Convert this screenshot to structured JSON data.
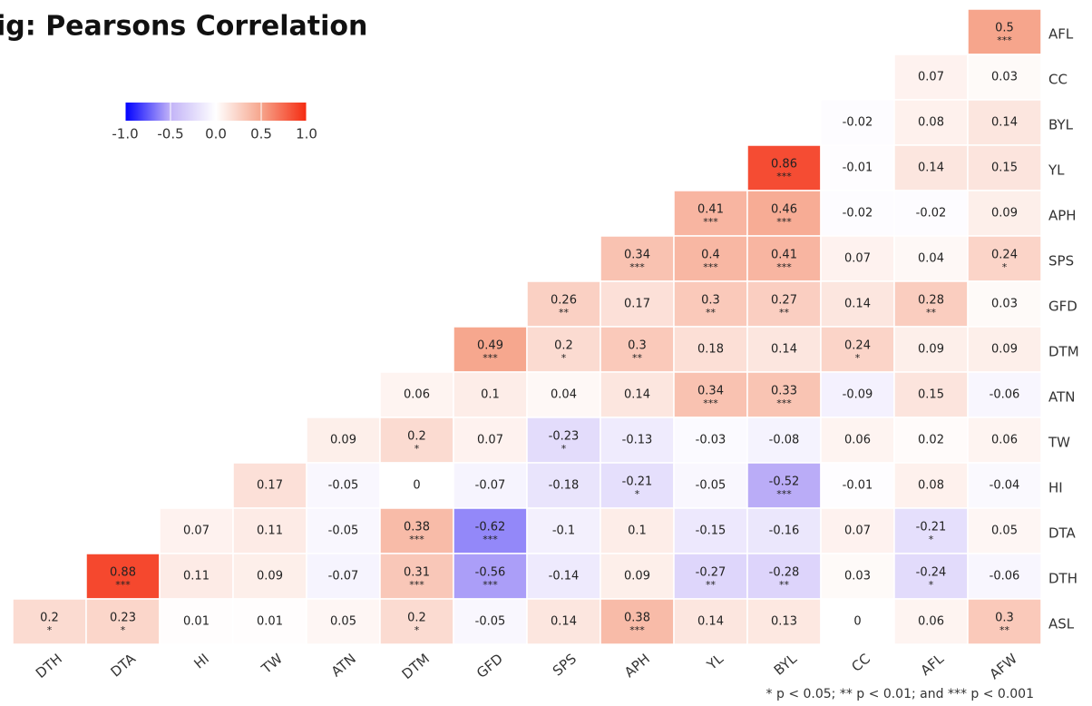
{
  "chart_data": {
    "type": "heatmap",
    "title": "ig: Pearsons Correlation",
    "x": [
      "DTH",
      "DTA",
      "HI",
      "TW",
      "ATN",
      "DTM",
      "GFD",
      "SPS",
      "APH",
      "YL",
      "BYL",
      "CC",
      "AFL",
      "AFW"
    ],
    "y": [
      "AFL",
      "CC",
      "BYL",
      "YL",
      "APH",
      "SPS",
      "GFD",
      "DTM",
      "ATN",
      "TW",
      "HI",
      "DTA",
      "DTH",
      "ASL"
    ],
    "values": [
      [
        null,
        null,
        null,
        null,
        null,
        null,
        null,
        null,
        null,
        null,
        null,
        null,
        null,
        0.5
      ],
      [
        null,
        null,
        null,
        null,
        null,
        null,
        null,
        null,
        null,
        null,
        null,
        null,
        0.07,
        0.03
      ],
      [
        null,
        null,
        null,
        null,
        null,
        null,
        null,
        null,
        null,
        null,
        null,
        -0.02,
        0.08,
        0.14
      ],
      [
        null,
        null,
        null,
        null,
        null,
        null,
        null,
        null,
        null,
        null,
        0.86,
        -0.01,
        0.14,
        0.15
      ],
      [
        null,
        null,
        null,
        null,
        null,
        null,
        null,
        null,
        null,
        0.41,
        0.46,
        -0.02,
        -0.02,
        0.09
      ],
      [
        null,
        null,
        null,
        null,
        null,
        null,
        null,
        null,
        0.34,
        0.4,
        0.41,
        0.07,
        0.04,
        0.24
      ],
      [
        null,
        null,
        null,
        null,
        null,
        null,
        null,
        0.26,
        0.17,
        0.3,
        0.27,
        0.14,
        0.28,
        0.03
      ],
      [
        null,
        null,
        null,
        null,
        null,
        null,
        0.49,
        0.2,
        0.3,
        0.18,
        0.14,
        0.24,
        0.09,
        0.09
      ],
      [
        null,
        null,
        null,
        null,
        null,
        0.06,
        0.1,
        0.04,
        0.14,
        0.34,
        0.33,
        -0.09,
        0.15,
        -0.06
      ],
      [
        null,
        null,
        null,
        null,
        0.09,
        0.2,
        0.07,
        -0.23,
        -0.13,
        -0.03,
        -0.08,
        0.06,
        0.02,
        0.06
      ],
      [
        null,
        null,
        null,
        0.17,
        -0.05,
        0,
        -0.07,
        -0.18,
        -0.21,
        -0.05,
        -0.52,
        -0.01,
        0.08,
        -0.04
      ],
      [
        null,
        null,
        0.07,
        0.11,
        -0.05,
        0.38,
        -0.62,
        -0.1,
        0.1,
        -0.15,
        -0.16,
        0.07,
        -0.21,
        0.05
      ],
      [
        null,
        0.88,
        0.11,
        0.09,
        -0.07,
        0.31,
        -0.56,
        -0.14,
        0.09,
        -0.27,
        -0.28,
        0.03,
        -0.24,
        -0.06
      ],
      [
        0.2,
        0.23,
        0.01,
        0.01,
        0.05,
        0.2,
        -0.05,
        0.14,
        0.38,
        0.14,
        0.13,
        0,
        0.06,
        0.3
      ]
    ],
    "stars": [
      [
        null,
        null,
        null,
        null,
        null,
        null,
        null,
        null,
        null,
        null,
        null,
        null,
        null,
        "***"
      ],
      [
        null,
        null,
        null,
        null,
        null,
        null,
        null,
        null,
        null,
        null,
        null,
        null,
        null,
        null
      ],
      [
        null,
        null,
        null,
        null,
        null,
        null,
        null,
        null,
        null,
        null,
        null,
        null,
        null,
        null
      ],
      [
        null,
        null,
        null,
        null,
        null,
        null,
        null,
        null,
        null,
        null,
        "***",
        null,
        null,
        null
      ],
      [
        null,
        null,
        null,
        null,
        null,
        null,
        null,
        null,
        null,
        "***",
        "***",
        null,
        null,
        null
      ],
      [
        null,
        null,
        null,
        null,
        null,
        null,
        null,
        null,
        "***",
        "***",
        "***",
        null,
        null,
        "*"
      ],
      [
        null,
        null,
        null,
        null,
        null,
        null,
        null,
        "**",
        null,
        "**",
        "**",
        null,
        "**",
        null
      ],
      [
        null,
        null,
        null,
        null,
        null,
        null,
        "***",
        "*",
        "**",
        null,
        null,
        "*",
        null,
        null
      ],
      [
        null,
        null,
        null,
        null,
        null,
        null,
        null,
        null,
        null,
        "***",
        "***",
        null,
        null,
        null
      ],
      [
        null,
        null,
        null,
        null,
        null,
        "*",
        null,
        "*",
        null,
        null,
        null,
        null,
        null,
        null
      ],
      [
        null,
        null,
        null,
        null,
        null,
        null,
        null,
        null,
        "*",
        null,
        "***",
        null,
        null,
        null
      ],
      [
        null,
        null,
        null,
        null,
        null,
        "***",
        "***",
        null,
        null,
        null,
        null,
        null,
        "*",
        null
      ],
      [
        null,
        "***",
        null,
        null,
        null,
        "***",
        "***",
        null,
        null,
        "**",
        "**",
        null,
        "*",
        null
      ],
      [
        "*",
        "*",
        null,
        null,
        null,
        "*",
        null,
        null,
        "***",
        null,
        null,
        null,
        null,
        "**"
      ]
    ],
    "colorscale": [
      [
        -1,
        "#0000ff"
      ],
      [
        -0.5,
        "#c2b3f7"
      ],
      [
        0,
        "#ffffff"
      ],
      [
        0.5,
        "#f6a58c"
      ],
      [
        1,
        "#f52a10"
      ]
    ],
    "clim": [
      -1,
      1
    ],
    "cticks": [
      {
        "value": -1,
        "label": "-1.0"
      },
      {
        "value": -0.5,
        "label": "-0.5"
      },
      {
        "value": 0,
        "label": "0.0"
      },
      {
        "value": 0.5,
        "label": "0.5"
      },
      {
        "value": 1,
        "label": "1.0"
      }
    ],
    "footnote": "* p < 0.05; ** p < 0.01; and *** p < 0.001"
  }
}
